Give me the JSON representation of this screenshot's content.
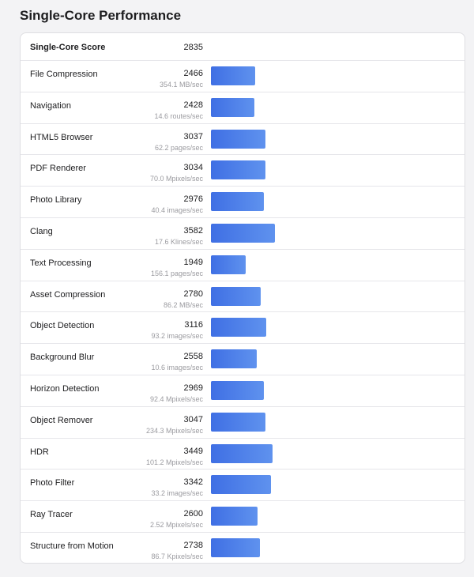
{
  "title": "Single-Core Performance",
  "colors": {
    "bar_start": "#3f6fe4",
    "bar_end": "#5f92ee"
  },
  "bar_scale_max": 3582,
  "header": {
    "name": "Single-Core Score",
    "score": "2835"
  },
  "rows": [
    {
      "name": "File Compression",
      "score": "2466",
      "unit": "354.1 MB/sec"
    },
    {
      "name": "Navigation",
      "score": "2428",
      "unit": "14.6 routes/sec"
    },
    {
      "name": "HTML5 Browser",
      "score": "3037",
      "unit": "62.2 pages/sec"
    },
    {
      "name": "PDF Renderer",
      "score": "3034",
      "unit": "70.0 Mpixels/sec"
    },
    {
      "name": "Photo Library",
      "score": "2976",
      "unit": "40.4 images/sec"
    },
    {
      "name": "Clang",
      "score": "3582",
      "unit": "17.6 Klines/sec"
    },
    {
      "name": "Text Processing",
      "score": "1949",
      "unit": "156.1 pages/sec"
    },
    {
      "name": "Asset Compression",
      "score": "2780",
      "unit": "86.2 MB/sec"
    },
    {
      "name": "Object Detection",
      "score": "3116",
      "unit": "93.2 images/sec"
    },
    {
      "name": "Background Blur",
      "score": "2558",
      "unit": "10.6 images/sec"
    },
    {
      "name": "Horizon Detection",
      "score": "2969",
      "unit": "92.4 Mpixels/sec"
    },
    {
      "name": "Object Remover",
      "score": "3047",
      "unit": "234.3 Mpixels/sec"
    },
    {
      "name": "HDR",
      "score": "3449",
      "unit": "101.2 Mpixels/sec"
    },
    {
      "name": "Photo Filter",
      "score": "3342",
      "unit": "33.2 images/sec"
    },
    {
      "name": "Ray Tracer",
      "score": "2600",
      "unit": "2.52 Mpixels/sec"
    },
    {
      "name": "Structure from Motion",
      "score": "2738",
      "unit": "86.7 Kpixels/sec"
    }
  ]
}
